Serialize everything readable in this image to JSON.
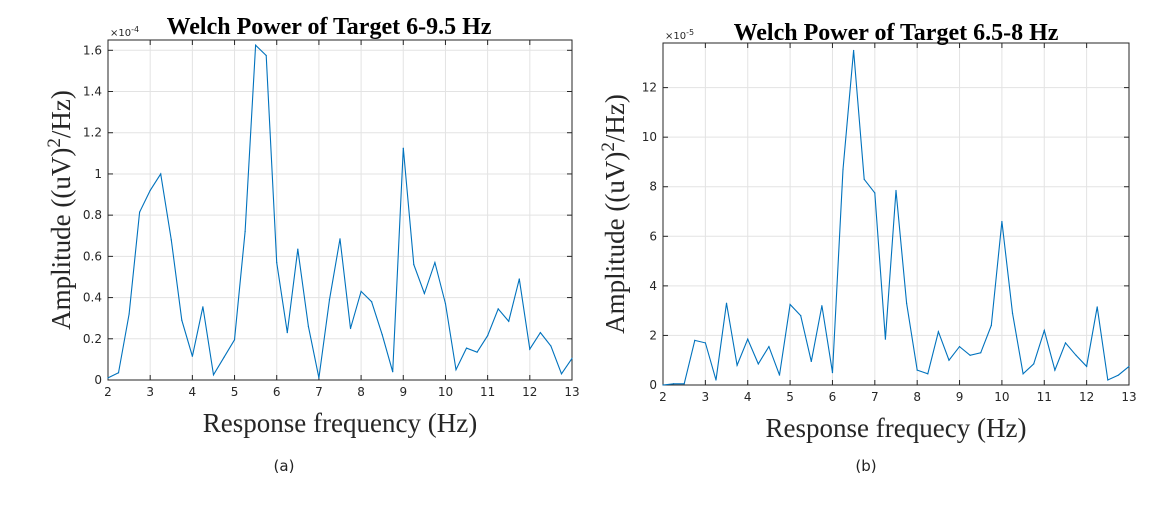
{
  "chart_data": [
    {
      "type": "line",
      "title": "Welch Power of Target 6-9.5 Hz",
      "xlabel": "Response frequency (Hz)",
      "ylabel": "Amplitude ((uV)",
      "ylabel_sup": "2",
      "ylabel_tail": "/Hz)",
      "exponent": "×10",
      "exponent_power": "-4",
      "caption": "(a)",
      "xlim": [
        2,
        13
      ],
      "ylim": [
        0,
        1.65
      ],
      "xticks": [
        2,
        3,
        4,
        5,
        6,
        7,
        8,
        9,
        10,
        11,
        12,
        13
      ],
      "yticks": [
        0,
        0.2,
        0.4,
        0.6,
        0.8,
        1,
        1.2,
        1.4,
        1.6
      ],
      "ytick_labels": [
        "0",
        "0.2",
        "0.4",
        "0.6",
        "0.8",
        "1",
        "1.2",
        "1.4",
        "1.6"
      ],
      "grid": true,
      "color": "#0072BD",
      "x": [
        2.0,
        2.25,
        2.5,
        2.75,
        3.0,
        3.25,
        3.5,
        3.75,
        4.0,
        4.25,
        4.5,
        4.75,
        5.0,
        5.25,
        5.5,
        5.75,
        6.0,
        6.25,
        6.5,
        6.75,
        7.0,
        7.25,
        7.5,
        7.75,
        8.0,
        8.25,
        8.5,
        8.75,
        9.0,
        9.25,
        9.5,
        9.75,
        10.0,
        10.25,
        10.5,
        10.75,
        11.0,
        11.25,
        11.5,
        11.75,
        12.0,
        12.25,
        12.5,
        12.75,
        13.0
      ],
      "y": [
        0.01,
        0.035,
        0.32,
        0.815,
        0.92,
        1.0,
        0.68,
        0.29,
        0.115,
        0.355,
        0.025,
        0.11,
        0.195,
        0.72,
        1.625,
        1.575,
        0.57,
        0.23,
        0.635,
        0.26,
        0.01,
        0.39,
        0.685,
        0.25,
        0.43,
        0.38,
        0.22,
        0.04,
        1.125,
        0.56,
        0.42,
        0.57,
        0.37,
        0.05,
        0.155,
        0.135,
        0.215,
        0.345,
        0.285,
        0.49,
        0.15,
        0.23,
        0.165,
        0.03,
        0.105
      ]
    },
    {
      "type": "line",
      "title": "Welch Power of Target 6.5-8 Hz",
      "xlabel": "Response frequecy (Hz)",
      "ylabel": "Amplitude ((uV)",
      "ylabel_sup": "2",
      "ylabel_tail": "/Hz)",
      "exponent": "×10",
      "exponent_power": "-5",
      "caption": "(b)",
      "xlim": [
        2,
        13
      ],
      "ylim": [
        0,
        13.8
      ],
      "xticks": [
        2,
        3,
        4,
        5,
        6,
        7,
        8,
        9,
        10,
        11,
        12,
        13
      ],
      "yticks": [
        0,
        2,
        4,
        6,
        8,
        10,
        12
      ],
      "ytick_labels": [
        "0",
        "2",
        "4",
        "6",
        "8",
        "10",
        "12"
      ],
      "grid": true,
      "color": "#0072BD",
      "x": [
        2.0,
        2.25,
        2.5,
        2.75,
        3.0,
        3.25,
        3.5,
        3.75,
        4.0,
        4.25,
        4.5,
        4.75,
        5.0,
        5.25,
        5.5,
        5.75,
        6.0,
        6.25,
        6.5,
        6.75,
        7.0,
        7.25,
        7.5,
        7.75,
        8.0,
        8.25,
        8.5,
        8.75,
        9.0,
        9.25,
        9.5,
        9.75,
        10.0,
        10.25,
        10.5,
        10.75,
        11.0,
        11.25,
        11.5,
        11.75,
        12.0,
        12.25,
        12.5,
        12.75,
        13.0
      ],
      "y": [
        0.0,
        0.05,
        0.05,
        1.8,
        1.7,
        0.2,
        3.3,
        0.8,
        1.85,
        0.85,
        1.55,
        0.4,
        3.25,
        2.8,
        0.95,
        3.2,
        0.5,
        8.7,
        13.5,
        8.3,
        7.75,
        1.85,
        7.85,
        3.3,
        0.6,
        0.45,
        2.15,
        1.0,
        1.55,
        1.2,
        1.3,
        2.4,
        6.6,
        2.9,
        0.45,
        0.85,
        2.2,
        0.6,
        1.7,
        1.2,
        0.75,
        3.15,
        0.2,
        0.4,
        0.75
      ]
    }
  ]
}
